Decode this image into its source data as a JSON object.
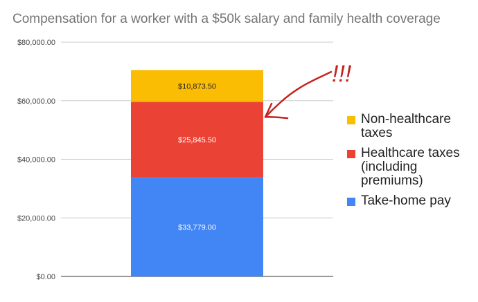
{
  "chart_data": {
    "type": "bar",
    "stacked": true,
    "title": "Compensation for a worker with a $50k salary and family health coverage",
    "xlabel": "",
    "ylabel": "",
    "categories": [
      ""
    ],
    "ylim": [
      0,
      80000
    ],
    "y_ticks": [
      "$0.00",
      "$20,000.00",
      "$40,000.00",
      "$60,000.00",
      "$80,000.00"
    ],
    "y_tick_values": [
      0,
      20000,
      40000,
      60000,
      80000
    ],
    "grid": true,
    "legend_position": "right",
    "series": [
      {
        "name": "Take-home pay",
        "values": [
          33779.0
        ],
        "label": "$33,779.00",
        "color": "#4285f4",
        "label_color": "#ffffff"
      },
      {
        "name": "Healthcare taxes (including premiums)",
        "values": [
          25845.5
        ],
        "label": "$25,845.50",
        "color": "#ea4335",
        "label_color": "#ffffff"
      },
      {
        "name": "Non-healthcare taxes",
        "values": [
          10873.5
        ],
        "label": "$10,873.50",
        "color": "#fbbc04",
        "label_color": "#222222"
      }
    ],
    "annotations": [
      {
        "text": "!!!",
        "color": "#c5221f",
        "style": "handwritten arrow pointing to top of healthcare taxes segment"
      }
    ]
  }
}
